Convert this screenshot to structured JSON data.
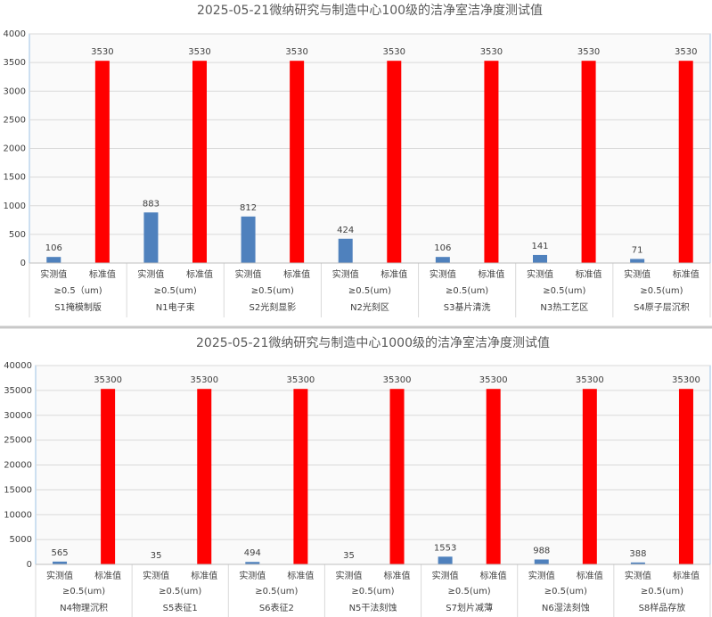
{
  "chart_data": [
    {
      "type": "bar",
      "title": "2025-05-21微纳研究与制造中心100级的洁净室洁净度测试值",
      "categories": [
        "S1掩模制版",
        "N1电子束",
        "S2光刻显影",
        "N2光刻区",
        "S3基片清洗",
        "N3热工艺区",
        "S4原子层沉积"
      ],
      "size_labels": [
        "≥0.5（um)",
        "≥0.5(um)",
        "≥0.5(um)",
        "≥0.5(um)",
        "≥0.5(um)",
        "≥0.5(um)",
        "≥0.5(um)"
      ],
      "series": [
        {
          "name": "实测值",
          "color": "#4f81bd",
          "values": [
            106,
            883,
            812,
            424,
            106,
            141,
            71
          ]
        },
        {
          "name": "标准值",
          "color": "#ff0000",
          "values": [
            3530,
            3530,
            3530,
            3530,
            3530,
            3530,
            3530
          ]
        }
      ],
      "ylim": [
        0,
        4000
      ],
      "yticks": [
        0,
        500,
        1000,
        1500,
        2000,
        2500,
        3000,
        3500,
        4000
      ],
      "grid": true
    },
    {
      "type": "bar",
      "title": "2025-05-21微纳研究与制造中心1000级的洁净室洁净度测试值",
      "categories": [
        "N4物理沉积",
        "S5表征1",
        "S6表征2",
        "N5干法刻蚀",
        "S7划片减薄",
        "N6湿法刻蚀",
        "S8样品存放"
      ],
      "size_labels": [
        "≥0.5(um)",
        "≥0.5(um)",
        "≥0.5(um)",
        "≥0.5(um)",
        "≥0.5(um)",
        "≥0.5(um)",
        "≥0.5(um)"
      ],
      "series": [
        {
          "name": "实测值",
          "color": "#4f81bd",
          "values": [
            565,
            35,
            494,
            35,
            1553,
            988,
            388
          ]
        },
        {
          "name": "标准值",
          "color": "#ff0000",
          "values": [
            35300,
            35300,
            35300,
            35300,
            35300,
            35300,
            35300
          ]
        }
      ],
      "ylim": [
        0,
        40000
      ],
      "yticks": [
        0,
        5000,
        10000,
        15000,
        20000,
        25000,
        30000,
        35000,
        40000
      ],
      "grid": true
    }
  ]
}
